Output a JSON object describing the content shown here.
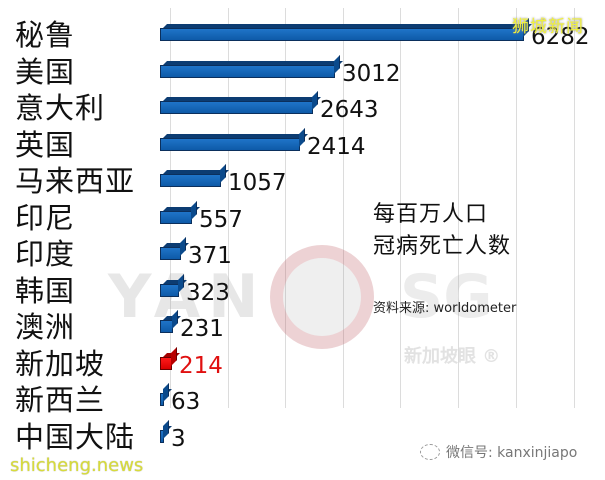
{
  "chart_data": {
    "type": "bar",
    "orientation": "horizontal",
    "title": "每百万人口 冠病死亡人数",
    "subtitle": "资料来源: worldometer",
    "categories": [
      "秘鲁",
      "美国",
      "意大利",
      "英国",
      "马来西亚",
      "印尼",
      "印度",
      "韩国",
      "澳洲",
      "新加坡",
      "新西兰",
      "中国大陆"
    ],
    "values": [
      6282,
      3012,
      2643,
      2414,
      1057,
      557,
      371,
      323,
      231,
      214,
      63,
      3
    ],
    "highlight": {
      "category": "新加坡",
      "color": "#e01010"
    },
    "bar_color": "#1565c0",
    "xlabel": "",
    "ylabel": "",
    "xlim": [
      0,
      7000
    ],
    "grid": true,
    "legend": "none",
    "data_labels": true
  },
  "title": {
    "line1": "每百万人口",
    "line2": "冠病死亡人数"
  },
  "source": "资料来源:  worldometer",
  "watermarks": {
    "top_right": "狮城新闻",
    "bottom_left": "shicheng.news",
    "yan": "YAN",
    "sg": "SG",
    "brand_cn": "新加坡眼 ®",
    "wechat": "微信号: kanxinjiapo"
  }
}
